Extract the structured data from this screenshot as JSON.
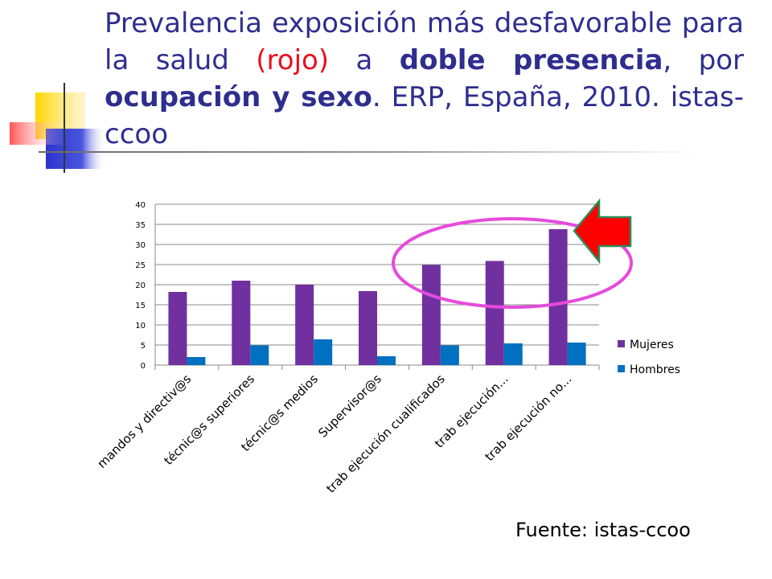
{
  "slide": {
    "title_parts": [
      "Prevalencia exposición más desfavorable para la salud ",
      "(rojo)",
      " a ",
      "doble presencia",
      ", por ",
      "ocupación y sexo",
      ". ERP, España, 2010. istas-ccoo"
    ],
    "source": "Fuente: istas-ccoo"
  },
  "colors": {
    "title": "#2e2e8f",
    "highlight_red": "#e8101e",
    "mujeres": "#7030a0",
    "hombres": "#0070c0",
    "ellipse": "#e64bdc",
    "arrow_fill": "#ff0000",
    "arrow_border": "#2e8b57"
  },
  "chart_data": {
    "type": "bar",
    "title": "",
    "xlabel": "",
    "ylabel": "",
    "ylim": [
      0,
      40
    ],
    "yticks": [
      "0",
      "5",
      "10",
      "15",
      "20",
      "25",
      "30",
      "35",
      "40"
    ],
    "grid": true,
    "legend_position": "right",
    "categories": [
      "mandos y directiv@s",
      "técnic@s superiores",
      "técnic@s medios",
      "Supervisor@s",
      "trab ejecución cualificados",
      "trab ejecución...",
      "trab ejecución no..."
    ],
    "series": [
      {
        "name": "Mujeres",
        "values": [
          18.2,
          21.0,
          20.0,
          18.4,
          24.9,
          25.9,
          33.8
        ]
      },
      {
        "name": "Hombres",
        "values": [
          2.0,
          4.9,
          6.4,
          2.2,
          4.9,
          5.4,
          5.6
        ]
      }
    ],
    "annotations": {
      "highlight": "ellipse around the last three categories",
      "arrow": "red arrow pointing left at the highest bar"
    }
  }
}
